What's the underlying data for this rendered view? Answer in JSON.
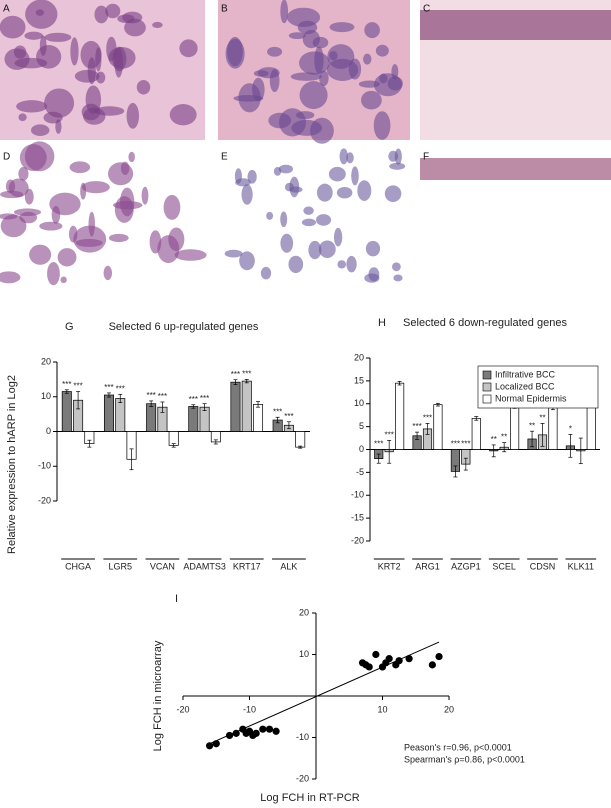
{
  "panels": [
    {
      "label": "A"
    },
    {
      "label": "B"
    },
    {
      "label": "C"
    },
    {
      "label": "D"
    },
    {
      "label": "E"
    },
    {
      "label": "F"
    }
  ],
  "chart_data": [
    {
      "type": "bar",
      "panel": "G",
      "title": "Selected 6 up-regulated genes",
      "ylabel": "Relative expression to hARP in Log2",
      "categories": [
        "CHGA",
        "LGR5",
        "VCAN",
        "ADAMTS3",
        "KRT17",
        "ALK"
      ],
      "series": [
        {
          "color": "#7a7a7a",
          "values": [
            11.5,
            10.5,
            8,
            7.2,
            14.2,
            3.3
          ],
          "errors": [
            0.5,
            0.6,
            0.8,
            0.5,
            0.7,
            0.8
          ],
          "significance": [
            "***",
            "***",
            "***",
            "***",
            "***",
            "***"
          ]
        },
        {
          "color": "#c4c4c4",
          "values": [
            9,
            9.5,
            7,
            7,
            14.5,
            1.8
          ],
          "errors": [
            2.5,
            1.2,
            1.5,
            1,
            0.5,
            1
          ],
          "significance": [
            "***",
            "***",
            "***",
            "***",
            "***",
            "***"
          ]
        },
        {
          "color": "#ffffff",
          "values": [
            -3.5,
            -8,
            -4,
            -3,
            7.8,
            -4.5
          ],
          "errors": [
            1,
            3,
            0.5,
            0.6,
            0.8,
            0.3
          ],
          "significance": [
            null,
            null,
            null,
            null,
            null,
            null
          ]
        }
      ],
      "ylim": [
        -20,
        20
      ],
      "yticks": [
        -20,
        -10,
        0,
        10,
        20
      ]
    },
    {
      "type": "bar",
      "panel": "H",
      "title": "Selected 6 down-regulated genes",
      "categories": [
        "KRT2",
        "ARG1",
        "AZGP1",
        "SCEL",
        "CDSN",
        "KLK11"
      ],
      "series": [
        {
          "name": "Infiltrative BCC",
          "color": "#7a7a7a",
          "values": [
            -2,
            3,
            -4.8,
            -0.3,
            2.3,
            0.8
          ],
          "errors": [
            1,
            0.8,
            1.2,
            1.3,
            1.7,
            2.5
          ],
          "significance": [
            "***",
            "***",
            "***",
            "**",
            "**",
            "*"
          ]
        },
        {
          "name": "Localized BCC",
          "color": "#c4c4c4",
          "values": [
            -0.5,
            4.5,
            -3.2,
            0.5,
            3.2,
            -0.3
          ],
          "errors": [
            2.5,
            1.2,
            1.3,
            1,
            2.5,
            2.8
          ],
          "significance": [
            "***",
            "***",
            "***",
            "**",
            "**",
            null
          ]
        },
        {
          "name": "Normal Epidermis",
          "color": "#ffffff",
          "values": [
            14.5,
            9.8,
            6.8,
            9.2,
            9.2,
            11.5
          ],
          "errors": [
            0.4,
            0.3,
            0.4,
            0.2,
            0.5,
            0.5
          ],
          "significance": [
            null,
            null,
            null,
            null,
            null,
            null
          ]
        }
      ],
      "ylim": [
        -20,
        20
      ],
      "yticks": [
        -20,
        -15,
        -10,
        -5,
        0,
        5,
        10,
        15,
        20
      ],
      "legend": "upper right"
    },
    {
      "type": "scatter",
      "panel": "I",
      "xlabel": "Log FCH in RT-PCR",
      "ylabel": "Log FCH in microarray",
      "color": "#000000",
      "x": [
        7,
        7.5,
        8,
        9,
        10,
        10.5,
        11,
        12,
        12.5,
        14,
        17.5,
        18.5,
        -16,
        -15,
        -13,
        -12,
        -11,
        -10.5,
        -10,
        -9.5,
        -9,
        -8,
        -7,
        -6
      ],
      "y": [
        8,
        7.5,
        7,
        10,
        7,
        8,
        9,
        7.5,
        8.5,
        9,
        7.5,
        9.5,
        -12,
        -11.5,
        -9.5,
        -9,
        -8,
        -9,
        -8.5,
        -9.5,
        -9,
        -8,
        -8,
        -8.5
      ],
      "trendline": {
        "x": [
          -16,
          18.5
        ],
        "y": [
          -11.5,
          13
        ]
      },
      "annotations": [
        "Peason's r=0.96, p<0.0001",
        "Spearman's ρ=0.86, p<0.0001"
      ],
      "xlim": [
        -20,
        20
      ],
      "ylim": [
        -20,
        20
      ],
      "xticks": [
        -20,
        -10,
        10,
        20
      ],
      "yticks": [
        -20,
        -10,
        10,
        20
      ]
    }
  ]
}
